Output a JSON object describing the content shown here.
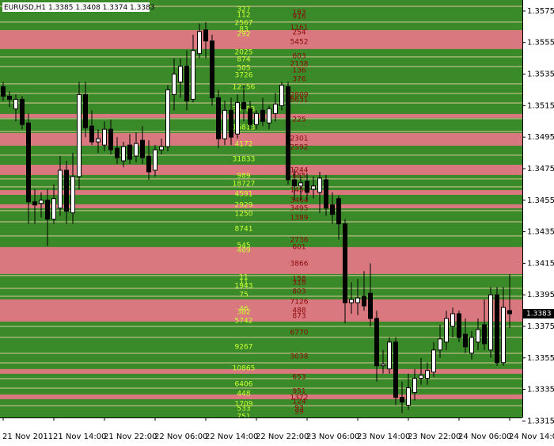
{
  "chart_data": {
    "type": "candlestick",
    "title": "EURUSD,H1  1.3385 1.3408 1.3374 1.3383",
    "categories": [
      "21 Nov 2011",
      null,
      null,
      null,
      null,
      null,
      null,
      null,
      "21 Nov 14:00",
      null,
      null,
      null,
      null,
      null,
      null,
      null,
      "21 Nov 22:00",
      null,
      null,
      null,
      null,
      null,
      null,
      null,
      "22 Nov 06:00",
      null,
      null,
      null,
      null,
      null,
      null,
      null,
      "22 Nov 14:00",
      null,
      null,
      null,
      null,
      null,
      null,
      null,
      "22 Nov 22:00",
      null,
      null,
      null,
      null,
      null,
      null,
      null,
      "23 Nov 06:00",
      null,
      null,
      null,
      null,
      null,
      null,
      null,
      "23 Nov 14:00",
      null,
      null,
      null,
      null,
      null,
      null,
      null,
      "23 Nov 22:00",
      null,
      null,
      null,
      null,
      null,
      null,
      null,
      "24 Nov 06:00",
      null,
      null,
      null,
      null,
      null,
      null,
      null,
      "24 Nov 14:00"
    ],
    "open": [
      1.3527,
      1.3521,
      1.3513,
      1.3519,
      1.3504,
      1.3454,
      1.3453,
      1.3455,
      1.3443,
      1.345,
      1.3474,
      1.3447,
      1.347,
      1.3522,
      1.3502,
      1.3492,
      1.349,
      1.35,
      1.3488,
      1.348,
      1.349,
      1.3483,
      1.3493,
      1.3483,
      1.3474,
      1.3487,
      1.3489,
      1.3522,
      1.353,
      1.354,
      1.3519,
      1.3548,
      1.3563,
      1.3556,
      1.352,
      1.3494,
      1.3512,
      1.3497,
      1.3517,
      1.3513,
      1.3503,
      1.3512,
      1.3504,
      1.351,
      1.3515,
      1.3527,
      1.3468,
      1.3464,
      1.3467,
      1.3462,
      1.346,
      1.3468,
      1.3452,
      1.3456,
      1.344,
      1.339,
      1.339,
      1.3394,
      1.3396,
      1.338,
      1.335,
      1.3348,
      1.3365,
      1.333,
      1.3325,
      1.3333,
      1.3342,
      1.3342,
      1.3346,
      1.336,
      1.3365,
      1.3375,
      1.3383,
      1.337,
      1.3358,
      1.3365,
      1.3376,
      1.336,
      1.3395,
      1.3352,
      1.3385
    ],
    "high": [
      1.353,
      1.3524,
      1.3522,
      1.3521,
      1.351,
      1.3462,
      1.346,
      1.3462,
      1.3465,
      1.3483,
      1.348,
      1.3485,
      1.353,
      1.353,
      1.3512,
      1.35,
      1.3505,
      1.3506,
      1.3495,
      1.3492,
      1.3497,
      1.3498,
      1.3502,
      1.3493,
      1.349,
      1.3494,
      1.3528,
      1.3545,
      1.3545,
      1.355,
      1.356,
      1.3567,
      1.3568,
      1.356,
      1.3525,
      1.3518,
      1.352,
      1.3522,
      1.3528,
      1.3518,
      1.3512,
      1.352,
      1.3515,
      1.3523,
      1.353,
      1.353,
      1.3475,
      1.347,
      1.3472,
      1.347,
      1.3473,
      1.3471,
      1.346,
      1.3458,
      1.3443,
      1.3403,
      1.3405,
      1.341,
      1.3415,
      1.3385,
      1.336,
      1.3368,
      1.3368,
      1.334,
      1.3345,
      1.3348,
      1.3355,
      1.3352,
      1.3365,
      1.3376,
      1.3385,
      1.3387,
      1.3385,
      1.338,
      1.3372,
      1.338,
      1.3392,
      1.34,
      1.34,
      1.34,
      1.3408
    ],
    "low": [
      1.3518,
      1.3514,
      1.3505,
      1.35,
      1.344,
      1.344,
      1.3444,
      1.3426,
      1.344,
      1.3445,
      1.344,
      1.344,
      1.3462,
      1.3495,
      1.349,
      1.3485,
      1.3486,
      1.3484,
      1.3478,
      1.3476,
      1.3478,
      1.3479,
      1.3478,
      1.3468,
      1.347,
      1.3484,
      1.3486,
      1.3512,
      1.352,
      1.3512,
      1.3517,
      1.3545,
      1.3545,
      1.3515,
      1.3488,
      1.349,
      1.349,
      1.3494,
      1.3505,
      1.35,
      1.35,
      1.3502,
      1.35,
      1.3505,
      1.3512,
      1.3465,
      1.3455,
      1.3455,
      1.3455,
      1.3456,
      1.3447,
      1.3445,
      1.344,
      1.343,
      1.3377,
      1.3383,
      1.3382,
      1.3385,
      1.3375,
      1.334,
      1.3345,
      1.3345,
      1.3325,
      1.332,
      1.3322,
      1.3328,
      1.3338,
      1.3338,
      1.3343,
      1.3355,
      1.336,
      1.3368,
      1.3365,
      1.3358,
      1.3354,
      1.336,
      1.336,
      1.3355,
      1.335,
      1.335,
      1.3374
    ],
    "close": [
      1.3521,
      1.3519,
      1.3519,
      1.3503,
      1.3454,
      1.3452,
      1.3455,
      1.3443,
      1.3456,
      1.3474,
      1.3448,
      1.347,
      1.3522,
      1.3501,
      1.3492,
      1.3494,
      1.35,
      1.3487,
      1.3482,
      1.3489,
      1.3481,
      1.3491,
      1.3482,
      1.3473,
      1.3487,
      1.3489,
      1.3525,
      1.3535,
      1.354,
      1.3518,
      1.355,
      1.3562,
      1.3556,
      1.352,
      1.3494,
      1.3512,
      1.3495,
      1.3517,
      1.3513,
      1.3503,
      1.351,
      1.3505,
      1.3513,
      1.3516,
      1.3528,
      1.3468,
      1.3464,
      1.3466,
      1.346,
      1.3464,
      1.3469,
      1.345,
      1.3446,
      1.344,
      1.339,
      1.3392,
      1.3393,
      1.3388,
      1.338,
      1.335,
      1.3351,
      1.3365,
      1.333,
      1.3327,
      1.3336,
      1.3342,
      1.3344,
      1.3347,
      1.336,
      1.3367,
      1.338,
      1.3383,
      1.3368,
      1.3362,
      1.3368,
      1.3373,
      1.3364,
      1.3395,
      1.3352,
      1.3387,
      1.3383
    ],
    "ylim": [
      1.33172,
      1.3582
    ],
    "yticks": [
      1.3575,
      1.3555,
      1.3535,
      1.3515,
      1.3495,
      1.3475,
      1.3455,
      1.3435,
      1.3415,
      1.3395,
      1.3375,
      1.3355,
      1.3335,
      1.3315
    ],
    "last_price": 1.3383,
    "band_color": "#3a8a2a",
    "zone_color": "#d9787f",
    "line_color": "#d9c89c",
    "bull_color": "#ffffff",
    "bear_color": "#000000",
    "buy_label_color": "#ccff33",
    "sell_label_color": "#8b0a0a",
    "zones": [
      {
        "from": 1.35509,
        "to": 1.35629
      },
      {
        "from": 1.35072,
        "to": 1.35097
      },
      {
        "from": 1.34896,
        "to": 1.34976
      },
      {
        "from": 1.3471,
        "to": 1.34775
      },
      {
        "from": 1.34584,
        "to": 1.34614
      },
      {
        "from": 1.34499,
        "to": 1.34524
      },
      {
        "from": 1.34082,
        "to": 1.34253
      },
      {
        "from": 1.3378,
        "to": 1.33921
      },
      {
        "from": 1.33449,
        "to": 1.33479
      },
      {
        "from": 1.33288,
        "to": 1.33318
      }
    ],
    "level_lines": [
      1.3578,
      1.3568,
      1.35459,
      1.35398,
      1.35288,
      1.35227,
      1.35167,
      1.35067,
      1.34986,
      1.34836,
      1.34685,
      1.34635,
      1.34484,
      1.34413,
      1.34323,
      1.34072,
      1.33991,
      1.33941,
      1.3375,
      1.3368,
      1.33579,
      1.33519,
      1.33418,
      1.33358,
      1.33247
    ],
    "buy_labels": [
      {
        "price": 1.3576,
        "volume": 327
      },
      {
        "price": 1.35725,
        "volume": 112
      },
      {
        "price": 1.35675,
        "volume": 2567
      },
      {
        "price": 1.35634,
        "volume": 83
      },
      {
        "price": 1.35604,
        "volume": 292
      },
      {
        "price": 1.35489,
        "volume": 2025
      },
      {
        "price": 1.35443,
        "volume": 874
      },
      {
        "price": 1.35388,
        "volume": 505
      },
      {
        "price": 1.35343,
        "volume": 3726
      },
      {
        "price": 1.35268,
        "volume": 12156
      },
      {
        "price": 1.35127,
        "volume": 35783
      },
      {
        "price": 1.35011,
        "volume": 16813
      },
      {
        "price": 1.34906,
        "volume": 4172
      },
      {
        "price": 1.3481,
        "volume": 31833
      },
      {
        "price": 1.34705,
        "volume": 989
      },
      {
        "price": 1.34655,
        "volume": 18727
      },
      {
        "price": 1.34589,
        "volume": 4591
      },
      {
        "price": 1.34519,
        "volume": 2929
      },
      {
        "price": 1.34464,
        "volume": 1250
      },
      {
        "price": 1.34368,
        "volume": 8741
      },
      {
        "price": 1.34263,
        "volume": 545
      },
      {
        "price": 1.34232,
        "volume": 489
      },
      {
        "price": 1.34062,
        "volume": 11
      },
      {
        "price": 1.34031,
        "volume": 11
      },
      {
        "price": 1.34006,
        "volume": 1943
      },
      {
        "price": 1.33951,
        "volume": 75
      },
      {
        "price": 1.33861,
        "volume": 46
      },
      {
        "price": 1.3384,
        "volume": 382
      },
      {
        "price": 1.33785,
        "volume": 5742
      },
      {
        "price": 1.33619,
        "volume": 9267
      },
      {
        "price": 1.33484,
        "volume": 10865
      },
      {
        "price": 1.33383,
        "volume": 6406
      },
      {
        "price": 1.33323,
        "volume": 448
      },
      {
        "price": 1.33258,
        "volume": 1709
      },
      {
        "price": 1.33228,
        "volume": 533
      },
      {
        "price": 1.33177,
        "volume": 751
      }
    ],
    "sell_labels": [
      {
        "price": 1.3574,
        "volume": 183
      },
      {
        "price": 1.35715,
        "volume": 916
      },
      {
        "price": 1.35645,
        "volume": 1161
      },
      {
        "price": 1.35614,
        "volume": 254
      },
      {
        "price": 1.35554,
        "volume": 5452
      },
      {
        "price": 1.35464,
        "volume": 603
      },
      {
        "price": 1.35413,
        "volume": 2138
      },
      {
        "price": 1.35373,
        "volume": 136
      },
      {
        "price": 1.35318,
        "volume": 376
      },
      {
        "price": 1.35217,
        "volume": 2809
      },
      {
        "price": 1.35187,
        "volume": 8631
      },
      {
        "price": 1.35062,
        "volume": 225
      },
      {
        "price": 1.34941,
        "volume": 2301
      },
      {
        "price": 1.34886,
        "volume": 2592
      },
      {
        "price": 1.3474,
        "volume": 1244
      },
      {
        "price": 1.34705,
        "volume": 685
      },
      {
        "price": 1.34614,
        "volume": 1454
      },
      {
        "price": 1.34549,
        "volume": 3464
      },
      {
        "price": 1.34499,
        "volume": 3495
      },
      {
        "price": 1.34438,
        "volume": 1389
      },
      {
        "price": 1.34298,
        "volume": 2736
      },
      {
        "price": 1.34253,
        "volume": 601
      },
      {
        "price": 1.34147,
        "volume": 3866
      },
      {
        "price": 1.34052,
        "volume": 158
      },
      {
        "price": 1.34026,
        "volume": 318
      },
      {
        "price": 1.33971,
        "volume": 803
      },
      {
        "price": 1.33906,
        "volume": 7126
      },
      {
        "price": 1.3385,
        "volume": 488
      },
      {
        "price": 1.33815,
        "volume": 873
      },
      {
        "price": 1.3371,
        "volume": 6770
      },
      {
        "price": 1.33559,
        "volume": 3038
      },
      {
        "price": 1.33429,
        "volume": 653
      },
      {
        "price": 1.33338,
        "volume": 951
      },
      {
        "price": 1.33298,
        "volume": 1372
      },
      {
        "price": 1.33273,
        "volume": 124
      },
      {
        "price": 1.33233,
        "volume": 93
      },
      {
        "price": 1.33207,
        "volume": 99
      }
    ]
  }
}
